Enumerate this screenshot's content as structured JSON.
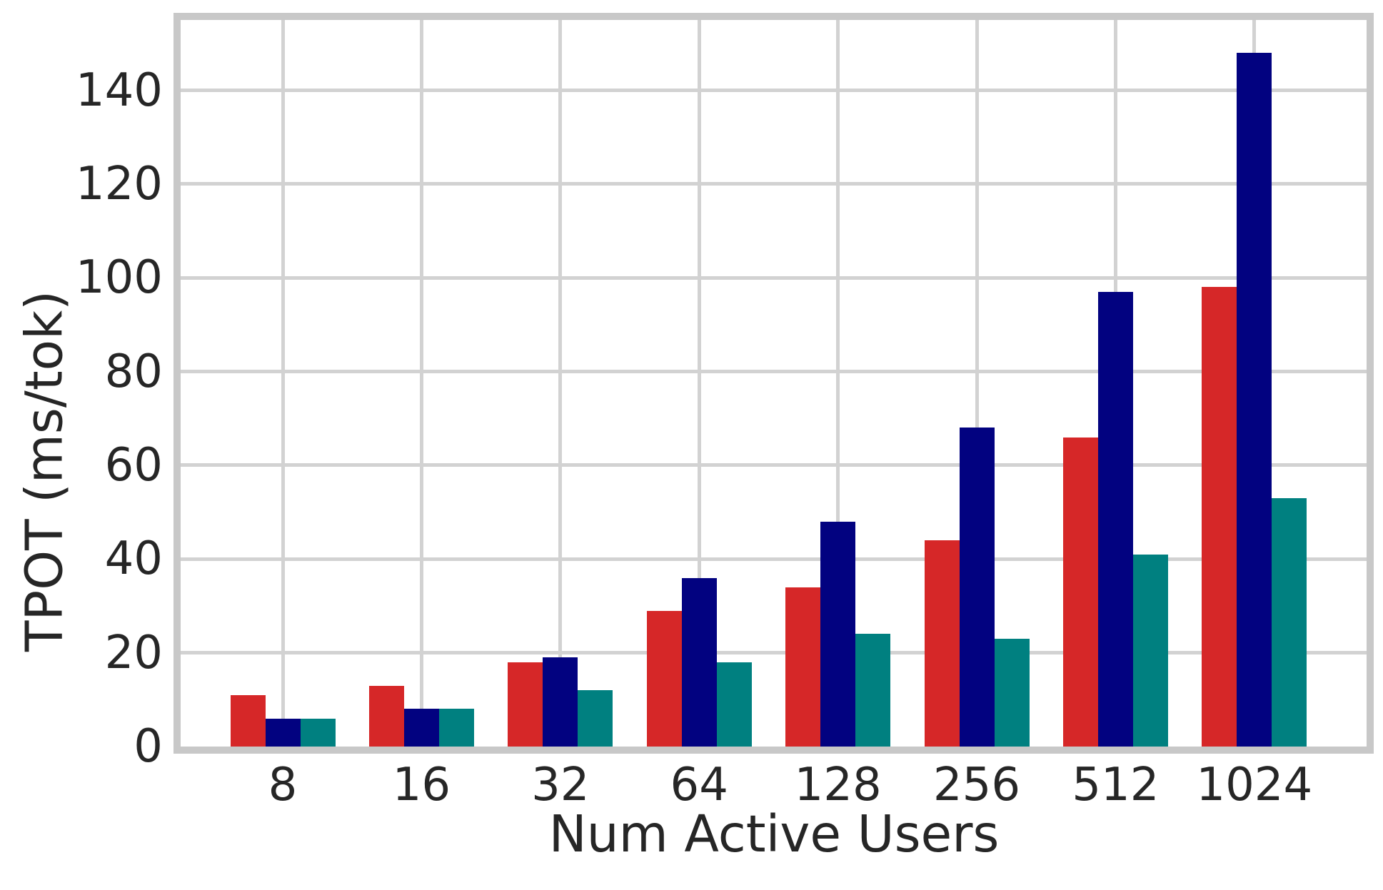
{
  "chart_data": {
    "type": "bar",
    "title": "",
    "xlabel": "Num Active Users",
    "ylabel": "TPOT (ms/tok)",
    "categories": [
      "8",
      "16",
      "32",
      "64",
      "128",
      "256",
      "512",
      "1024"
    ],
    "series": [
      {
        "name": "series-red",
        "color": "#d62728",
        "values": [
          11,
          13,
          18,
          29,
          34,
          44,
          66,
          98
        ]
      },
      {
        "name": "series-navy",
        "color": "#020280",
        "values": [
          6,
          8,
          19,
          36,
          48,
          68,
          97,
          148
        ]
      },
      {
        "name": "series-teal",
        "color": "#008080",
        "values": [
          6,
          8,
          12,
          18,
          24,
          23,
          41,
          53
        ]
      }
    ],
    "yticks": [
      0,
      20,
      40,
      60,
      80,
      100,
      120,
      140
    ],
    "ylim": [
      0,
      155
    ],
    "grid": true,
    "legend": "none",
    "colors": {
      "spine": "#c8c8c8",
      "gridline": "#d2d2d2",
      "text": "#262626",
      "background": "#ffffff"
    }
  }
}
